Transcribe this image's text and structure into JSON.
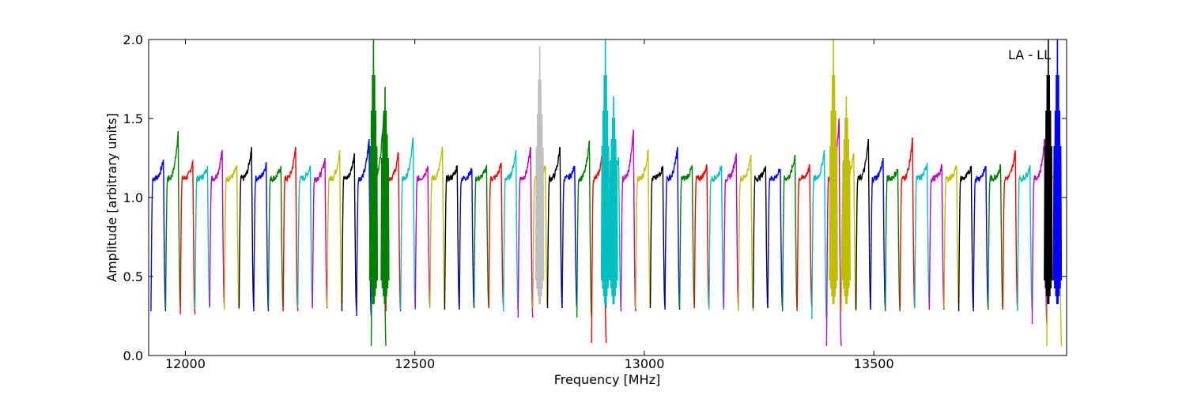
{
  "chart_data": {
    "type": "line",
    "title": "",
    "xlabel": "Frequency [MHz]",
    "ylabel": "Amplitude [arbitrary units]",
    "xlim": [
      11920,
      13920
    ],
    "ylim": [
      0.0,
      2.0
    ],
    "xticks": [
      12000,
      12500,
      13000,
      13500
    ],
    "yticks": [
      0.0,
      0.5,
      1.0,
      1.5,
      2.0
    ],
    "xtick_labels": [
      "12000",
      "12500",
      "13000",
      "13500"
    ],
    "ytick_labels": [
      "0.0",
      "0.5",
      "1.0",
      "1.5",
      "2.0"
    ],
    "annotation": "LA - LL",
    "grid": false,
    "series_colors": [
      "#0000ff",
      "#008000",
      "#ff0000",
      "#00bfbf",
      "#bf00bf",
      "#bfbf00",
      "#000000"
    ],
    "background_color": "#bfbfbf",
    "channel_start": 11925,
    "channel_width": 32,
    "channel_peaks": [
      1.24,
      1.42,
      1.23,
      1.2,
      1.3,
      1.2,
      1.32,
      1.22,
      1.2,
      1.32,
      1.2,
      1.25,
      1.3,
      1.28,
      1.37,
      1.55,
      1.28,
      1.38,
      1.2,
      1.32,
      1.2,
      1.18,
      1.2,
      1.22,
      1.3,
      1.32,
      1.2,
      1.32,
      1.2,
      1.36,
      1.4,
      1.25,
      1.43,
      1.3,
      1.2,
      1.32,
      1.2,
      1.2,
      1.2,
      1.28,
      1.27,
      1.2,
      1.18,
      1.27,
      1.2,
      1.3,
      1.5,
      1.28,
      1.37,
      1.25,
      1.18,
      1.38,
      1.22,
      1.2,
      1.2,
      1.2,
      1.2,
      1.2,
      1.3,
      1.2,
      1.37,
      1.3
    ],
    "channel_dips": [
      0.28,
      0.3,
      0.26,
      0.3,
      0.31,
      0.29,
      0.3,
      0.28,
      0.3,
      0.28,
      0.3,
      0.3,
      0.31,
      0.28,
      0.25,
      0.06,
      0.28,
      0.29,
      0.3,
      0.3,
      0.29,
      0.3,
      0.3,
      0.3,
      0.28,
      0.24,
      0.3,
      0.3,
      0.3,
      0.24,
      0.08,
      0.3,
      0.28,
      0.3,
      0.3,
      0.29,
      0.3,
      0.3,
      0.29,
      0.3,
      0.28,
      0.3,
      0.3,
      0.28,
      0.3,
      0.23,
      0.06,
      0.28,
      0.29,
      0.3,
      0.28,
      0.3,
      0.3,
      0.29,
      0.3,
      0.28,
      0.3,
      0.29,
      0.3,
      0.28,
      0.2,
      0.06
    ],
    "spikes": [
      {
        "x": 12410,
        "y": 2.0,
        "color": "#008000"
      },
      {
        "x": 12435,
        "y": 1.7,
        "color": "#008000"
      },
      {
        "x": 12772,
        "y": 1.96,
        "color": "#bfbfbf"
      },
      {
        "x": 12915,
        "y": 2.0,
        "color": "#00bfbf"
      },
      {
        "x": 12933,
        "y": 1.64,
        "color": "#00bfbf"
      },
      {
        "x": 13412,
        "y": 2.0,
        "color": "#bfbf00"
      },
      {
        "x": 13440,
        "y": 1.64,
        "color": "#bfbf00"
      },
      {
        "x": 13880,
        "y": 2.0,
        "color": "#000000"
      },
      {
        "x": 13900,
        "y": 2.0,
        "color": "#0000ff"
      }
    ]
  }
}
